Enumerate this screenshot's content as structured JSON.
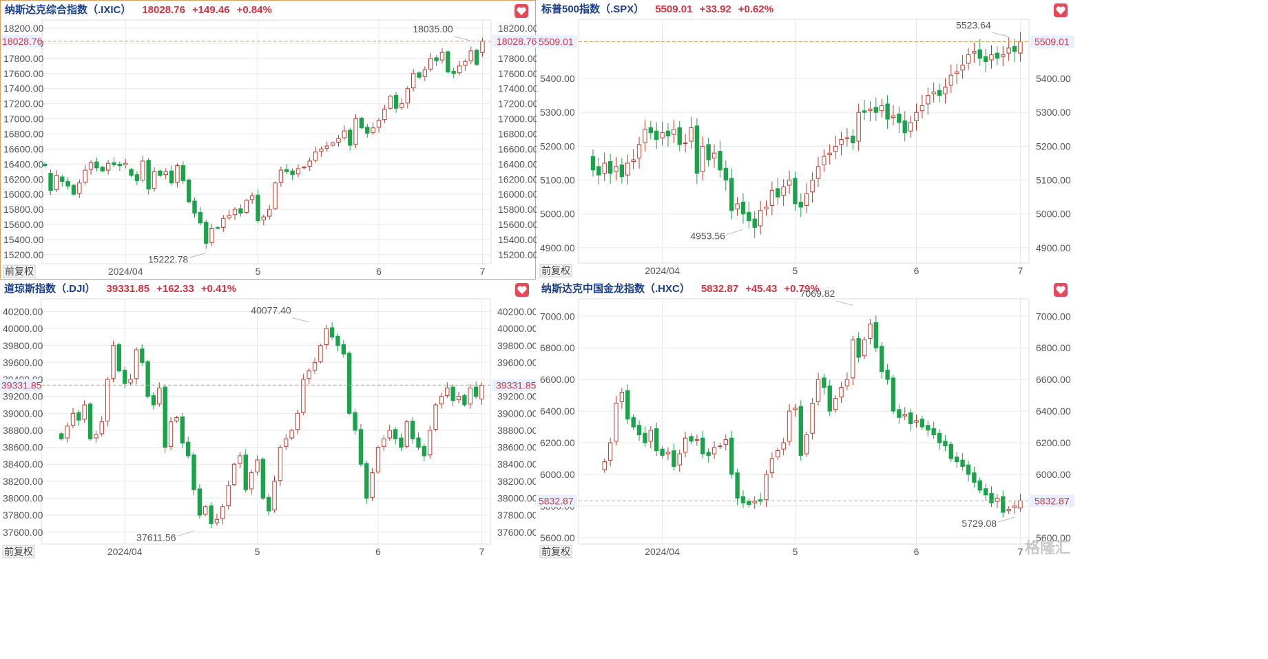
{
  "ui": {
    "adjust_label": "前复权",
    "colors": {
      "up": "#c0392b",
      "up_fill": "#ffffff",
      "down": "#1aa34a",
      "grid": "#e8e8e8",
      "ref": "#e0a060",
      "tag_bg": "#e8f0ff",
      "tag_text": "#d6333f",
      "label": "#555555"
    },
    "watermark": "格隆汇"
  },
  "chart_data": [
    {
      "type": "candlestick",
      "title": "纳斯达克综合指数（.IXIC）",
      "last": "18028.76",
      "change": "+149.46",
      "change_pct": "+0.84%",
      "last_value": 18028.76,
      "ylim": [
        15080,
        18310
      ],
      "yticks": [
        15200,
        15400,
        15600,
        15800,
        16000,
        16200,
        16400,
        16600,
        16800,
        17000,
        17200,
        17400,
        17600,
        17800,
        18000,
        18200
      ],
      "ytick_labels": [
        "15200.00",
        "15400.00",
        "15600.00",
        "15800.00",
        "16000.00",
        "16200.00",
        "16400.00",
        "16600.00",
        "16800.00",
        "17000.00",
        "17200.00",
        "17400.00",
        "17600.00",
        "17800.00",
        "18000.00",
        "18200.00"
      ],
      "hide_right_tick": "18000.00",
      "xticks": [
        {
          "i": 14,
          "label": "2024/04"
        },
        {
          "i": 37,
          "label": "5"
        },
        {
          "i": 58,
          "label": "6"
        },
        {
          "i": 76,
          "label": "7"
        }
      ],
      "high_label": {
        "i": 74,
        "value": 18035.0,
        "text": "18035.00"
      },
      "low_label": {
        "i": 28,
        "value": 15222.78,
        "text": "15222.78"
      },
      "closes": [
        16380,
        16050,
        16250,
        16170,
        16110,
        16000,
        16150,
        16320,
        16420,
        16350,
        16310,
        16410,
        16390,
        16380,
        16410,
        16250,
        16180,
        16440,
        16070,
        16300,
        16250,
        16300,
        16150,
        16380,
        16180,
        15900,
        15750,
        15620,
        15350,
        15550,
        15550,
        15680,
        15720,
        15800,
        15750,
        15920,
        15980,
        15650,
        15700,
        15800,
        16150,
        16320,
        16300,
        16260,
        16340,
        16360,
        16440,
        16560,
        16600,
        16640,
        16680,
        16740,
        16840,
        16650,
        17000,
        16880,
        16810,
        16880,
        16980,
        17130,
        17300,
        17140,
        17200,
        17400,
        17600,
        17550,
        17650,
        17800,
        17770,
        17880,
        17620,
        17600,
        17700,
        17760,
        17900,
        17720,
        18028.76
      ],
      "opens": [
        16400,
        16280,
        16060,
        16230,
        16170,
        16120,
        16010,
        16160,
        16330,
        16430,
        16360,
        16320,
        16420,
        16400,
        16390,
        16330,
        16260,
        16190,
        16450,
        16080,
        16310,
        16260,
        16310,
        16160,
        16380,
        16190,
        15910,
        15760,
        15630,
        15360,
        15560,
        15560,
        15690,
        15730,
        15810,
        15760,
        15930,
        15990,
        15660,
        15710,
        15810,
        16160,
        16330,
        16310,
        16270,
        16350,
        16370,
        16450,
        16570,
        16610,
        16650,
        16690,
        16750,
        16850,
        16660,
        17010,
        16890,
        16820,
        16890,
        16990,
        17140,
        17310,
        17150,
        17210,
        17410,
        17610,
        17560,
        17660,
        17810,
        17780,
        17890,
        17630,
        17610,
        17710,
        17770,
        17910,
        17879.3
      ]
    },
    {
      "type": "candlestick",
      "title": "标普500指数（.SPX）",
      "last": "5509.01",
      "change": "+33.92",
      "change_pct": "+0.62%",
      "last_value": 5509.01,
      "ylim": [
        4855,
        5575
      ],
      "yticks": [
        4900,
        5000,
        5100,
        5200,
        5300,
        5400
      ],
      "ytick_labels": [
        "4900.00",
        "5000.00",
        "5100.00",
        "5200.00",
        "5300.00",
        "5400.00"
      ],
      "hide_right_tick": "",
      "xticks": [
        {
          "i": 14,
          "label": "2024/04"
        },
        {
          "i": 37,
          "label": "5"
        },
        {
          "i": 58,
          "label": "6"
        },
        {
          "i": 76,
          "label": "7"
        }
      ],
      "high_label": {
        "i": 74,
        "value": 5523.64,
        "text": "5523.64"
      },
      "low_label": {
        "i": 28,
        "value": 4953.56,
        "text": "4953.56"
      },
      "closes": [
        5130,
        5115,
        5150,
        5120,
        5140,
        5110,
        5150,
        5160,
        5205,
        5250,
        5240,
        5220,
        5240,
        5230,
        5250,
        5205,
        5210,
        5255,
        5120,
        5200,
        5160,
        5180,
        5130,
        5100,
        5010,
        5030,
        5000,
        4980,
        4960,
        5010,
        5020,
        5070,
        5050,
        5080,
        5100,
        5030,
        5020,
        5060,
        5100,
        5140,
        5170,
        5180,
        5200,
        5220,
        5225,
        5210,
        5300,
        5300,
        5310,
        5300,
        5320,
        5280,
        5290,
        5270,
        5240,
        5270,
        5300,
        5320,
        5350,
        5360,
        5350,
        5375,
        5410,
        5420,
        5440,
        5470,
        5480,
        5460,
        5450,
        5470,
        5460,
        5470,
        5490,
        5480,
        5509.01
      ],
      "opens": [
        5170,
        5140,
        5120,
        5155,
        5125,
        5145,
        5115,
        5155,
        5165,
        5210,
        5255,
        5245,
        5225,
        5245,
        5235,
        5255,
        5210,
        5215,
        5260,
        5125,
        5205,
        5165,
        5185,
        5135,
        5105,
        5015,
        5035,
        5005,
        4985,
        4965,
        5015,
        5025,
        5075,
        5055,
        5085,
        5105,
        5035,
        5025,
        5065,
        5105,
        5145,
        5175,
        5185,
        5205,
        5225,
        5230,
        5215,
        5305,
        5305,
        5315,
        5305,
        5325,
        5285,
        5295,
        5275,
        5245,
        5275,
        5305,
        5325,
        5355,
        5365,
        5355,
        5380,
        5415,
        5425,
        5445,
        5475,
        5485,
        5465,
        5455,
        5475,
        5465,
        5475,
        5495,
        5475.09
      ]
    },
    {
      "type": "candlestick",
      "title": "道琼斯指数（.DJI）",
      "last": "39331.85",
      "change": "+162.33",
      "change_pct": "+0.41%",
      "last_value": 39331.85,
      "ylim": [
        37460,
        40350
      ],
      "yticks": [
        37600,
        37800,
        38000,
        38200,
        38400,
        38600,
        38800,
        39000,
        39200,
        39400,
        39600,
        39800,
        40000,
        40200
      ],
      "ytick_labels": [
        "37600.00",
        "37800.00",
        "38000.00",
        "38200.00",
        "38400.00",
        "38600.00",
        "38800.00",
        "39000.00",
        "39200.00",
        "39400.00",
        "39600.00",
        "39800.00",
        "40000.00",
        "40200.00"
      ],
      "hide_right_tick": "39400.00",
      "xticks": [
        {
          "i": 14,
          "label": "2024/04"
        },
        {
          "i": 37,
          "label": "5"
        },
        {
          "i": 58,
          "label": "6"
        },
        {
          "i": 76,
          "label": "7"
        }
      ],
      "high_label": {
        "i": 46,
        "value": 40077.4,
        "text": "40077.40"
      },
      "low_label": {
        "i": 26,
        "value": 37611.56,
        "text": "37611.56"
      },
      "closes": [
        38700,
        38850,
        39000,
        38920,
        39100,
        38700,
        38750,
        38900,
        39400,
        39800,
        39500,
        39350,
        39400,
        39750,
        39600,
        39200,
        39100,
        39300,
        38600,
        38900,
        38950,
        38650,
        38500,
        38100,
        37800,
        37900,
        37700,
        37750,
        37900,
        38150,
        38400,
        38500,
        38100,
        38300,
        38450,
        38000,
        37850,
        38200,
        38600,
        38700,
        38800,
        39000,
        39400,
        39500,
        39600,
        39800,
        40000,
        39900,
        39800,
        39700,
        39000,
        38800,
        38400,
        38000,
        38300,
        38600,
        38700,
        38800,
        38700,
        38600,
        38900,
        38700,
        38600,
        38500,
        38800,
        39100,
        39200,
        39300,
        39150,
        39200,
        39100,
        39300,
        39200,
        39331.85
      ],
      "opens": [
        38760,
        38710,
        38860,
        39010,
        38930,
        39110,
        38710,
        38760,
        38910,
        39410,
        39810,
        39510,
        39360,
        39410,
        39760,
        39610,
        39210,
        39110,
        39310,
        38610,
        38910,
        38960,
        38660,
        38510,
        38110,
        37810,
        37910,
        37710,
        37760,
        37910,
        38160,
        38410,
        38510,
        38110,
        38310,
        38460,
        38010,
        37860,
        38210,
        38610,
        38710,
        38810,
        39010,
        39410,
        39510,
        39610,
        39810,
        40010,
        39910,
        39810,
        39710,
        39010,
        38810,
        38410,
        38010,
        38310,
        38610,
        38710,
        38810,
        38710,
        38610,
        38910,
        38710,
        38610,
        38510,
        38810,
        39110,
        39210,
        39310,
        39160,
        39210,
        39110,
        39310,
        39169.52
      ]
    },
    {
      "type": "candlestick",
      "title": "纳斯达克中国金龙指数（.HXC）",
      "last": "5832.87",
      "change": "+45.43",
      "change_pct": "+0.79%",
      "last_value": 5832.87,
      "ylim": [
        5560,
        7110
      ],
      "yticks": [
        5600,
        5800,
        6000,
        6200,
        6400,
        6600,
        6800,
        7000
      ],
      "ytick_labels": [
        "5600.00",
        "5800.00",
        "6000.00",
        "6200.00",
        "6400.00",
        "6600.00",
        "6800.00",
        "7000.00"
      ],
      "hide_right_tick": "5800.00",
      "xticks": [
        {
          "i": 14,
          "label": "2024/04"
        },
        {
          "i": 37,
          "label": "5"
        },
        {
          "i": 58,
          "label": "6"
        },
        {
          "i": 76,
          "label": "7"
        }
      ],
      "high_label": {
        "i": 47,
        "value": 7069.82,
        "text": "7069.82"
      },
      "low_label": {
        "i": 75,
        "value": 5729.08,
        "text": "5729.08"
      },
      "closes": [
        6080,
        6200,
        6450,
        6520,
        6350,
        6300,
        6250,
        6200,
        6280,
        6150,
        6120,
        6140,
        6050,
        6130,
        6230,
        6210,
        6220,
        6130,
        6120,
        6170,
        6180,
        6220,
        6000,
        5850,
        5820,
        5810,
        5830,
        5830,
        6000,
        6100,
        6150,
        6200,
        6400,
        6420,
        6120,
        6250,
        6450,
        6600,
        6550,
        6400,
        6480,
        6550,
        6600,
        6850,
        6740,
        6850,
        6950,
        6800,
        6650,
        6600,
        6400,
        6360,
        6380,
        6320,
        6340,
        6300,
        6280,
        6250,
        6200,
        6180,
        6100,
        6080,
        6050,
        6000,
        5950,
        5900,
        5870,
        5820,
        5850,
        5760,
        5780,
        5800,
        5832.87
      ],
      "opens": [
        6030,
        6090,
        6210,
        6460,
        6530,
        6360,
        6310,
        6260,
        6210,
        6290,
        6160,
        6130,
        6150,
        6060,
        6140,
        6240,
        6220,
        6230,
        6140,
        6130,
        6180,
        6190,
        6230,
        6010,
        5860,
        5830,
        5820,
        5840,
        5840,
        6010,
        6110,
        6160,
        6210,
        6410,
        6430,
        6130,
        6260,
        6460,
        6610,
        6560,
        6410,
        6490,
        6560,
        6610,
        6860,
        6750,
        6860,
        6960,
        6810,
        6660,
        6610,
        6410,
        6370,
        6390,
        6330,
        6350,
        6310,
        6290,
        6260,
        6210,
        6190,
        6110,
        6090,
        6060,
        6010,
        5960,
        5910,
        5880,
        5830,
        5860,
        5770,
        5790,
        5787.44
      ]
    }
  ]
}
